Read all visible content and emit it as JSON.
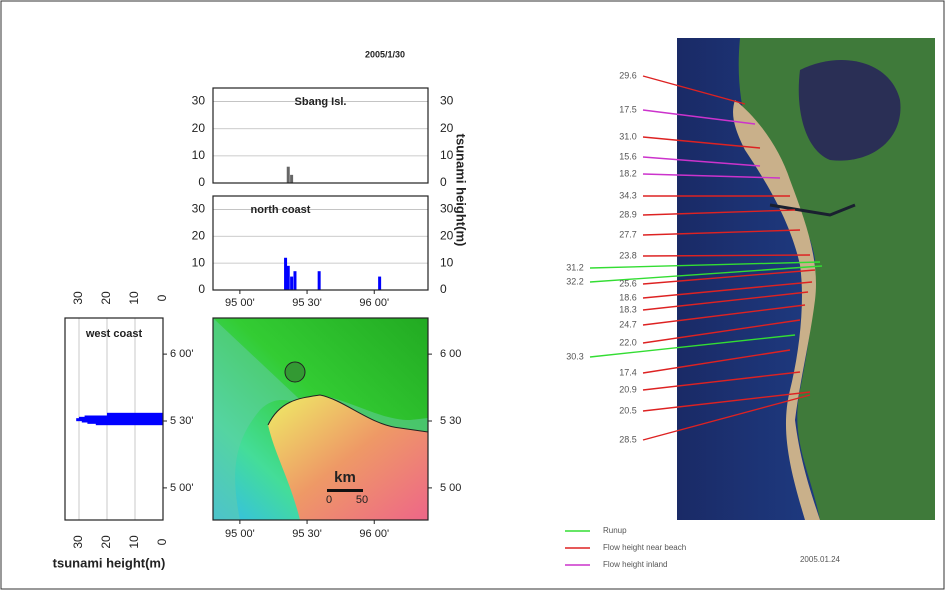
{
  "date": "2005/1/30",
  "chart_data": [
    {
      "type": "bar",
      "title": "Sbang Isl.",
      "x": [
        95.36,
        95.385
      ],
      "values": [
        6,
        3
      ],
      "color": "#666666",
      "xlim": [
        94.8,
        96.4
      ],
      "ylim": [
        0,
        35
      ],
      "yticks": [
        0,
        10,
        20,
        30
      ],
      "grid": true
    },
    {
      "type": "bar",
      "title": "north coast",
      "x": [
        95.34,
        95.36,
        95.385,
        95.41,
        95.59,
        96.04
      ],
      "values": [
        12,
        9,
        5,
        7,
        7,
        5
      ],
      "color": "#0000ff",
      "xlim": [
        94.8,
        96.4
      ],
      "ylim": [
        0,
        35
      ],
      "yticks": [
        0,
        10,
        20,
        30
      ],
      "grid": true,
      "xticks": [
        {
          "value": 95,
          "label": "95 00'"
        },
        {
          "value": 95.5,
          "label": "95 30'"
        },
        {
          "value": 96,
          "label": "96 00'"
        }
      ],
      "ylabel": "tsunami height(m)"
    },
    {
      "type": "hbar",
      "title": "west coast",
      "y": [
        5.55,
        5.53,
        5.52,
        5.51,
        5.5,
        5.49,
        5.48
      ],
      "values": [
        20,
        28,
        30,
        31,
        29,
        27,
        24
      ],
      "color": "#0000ff",
      "xlim": [
        35,
        0
      ],
      "xticks": [
        30,
        20,
        10,
        0
      ],
      "ylim": [
        4.76,
        6.27
      ],
      "grid": true,
      "yticks": [
        {
          "value": 6,
          "label": "6 00'"
        },
        {
          "value": 5.5,
          "label": "5 30'"
        },
        {
          "value": 5,
          "label": "5 00'"
        }
      ],
      "xlabel": "tsunami height(m)"
    },
    {
      "type": "map",
      "xlim": [
        94.8,
        96.4
      ],
      "ylim": [
        4.76,
        6.27
      ],
      "xticks": [
        {
          "value": 95,
          "label": "95 00'"
        },
        {
          "value": 95.5,
          "label": "95 30'"
        },
        {
          "value": 96,
          "label": "96 00'"
        }
      ],
      "yticks": [
        {
          "value": 6,
          "label": "6 00"
        },
        {
          "value": 5.5,
          "label": "5 30"
        },
        {
          "value": 5,
          "label": "5 00"
        }
      ],
      "scale_unit": "km",
      "scale_labels": [
        "0",
        "50"
      ]
    }
  ],
  "satellite": {
    "labels": [
      {
        "text": "29.6",
        "kind": 1
      },
      {
        "text": "17.5",
        "kind": 2
      },
      {
        "text": "31.0",
        "kind": 1
      },
      {
        "text": "15.6",
        "kind": 2
      },
      {
        "text": "18.2",
        "kind": 2
      },
      {
        "text": "34.3",
        "kind": 1
      },
      {
        "text": "28.9",
        "kind": 1
      },
      {
        "text": "27.7",
        "kind": 1
      },
      {
        "text": "23.8",
        "kind": 1
      },
      {
        "text": "31.2",
        "kind": 0
      },
      {
        "text": "32.2",
        "kind": 0
      },
      {
        "text": "25.6",
        "kind": 1
      },
      {
        "text": "18.6",
        "kind": 1
      },
      {
        "text": "18.3",
        "kind": 1
      },
      {
        "text": "24.7",
        "kind": 1
      },
      {
        "text": "22.0",
        "kind": 1
      },
      {
        "text": "30.3",
        "kind": 0
      },
      {
        "text": "17.4",
        "kind": 1
      },
      {
        "text": "20.9",
        "kind": 1
      },
      {
        "text": "20.5",
        "kind": 1
      },
      {
        "text": "28.5",
        "kind": 1
      }
    ],
    "legend": [
      {
        "name": "Runup",
        "color": "#33dd33"
      },
      {
        "name": "Flow height near beach",
        "color": "#dd2222"
      },
      {
        "name": "Flow height inland",
        "color": "#cc33cc"
      }
    ],
    "date": "2005.01.24"
  }
}
